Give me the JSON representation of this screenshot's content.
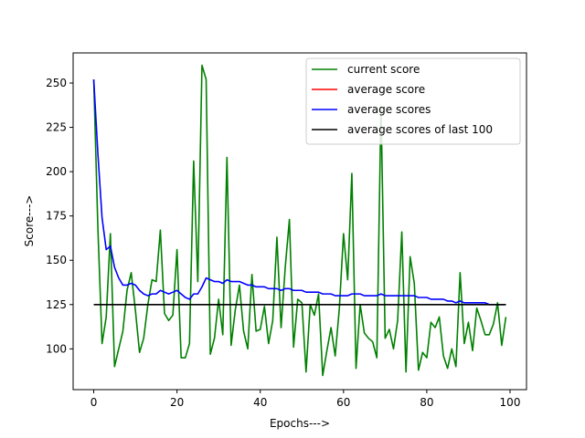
{
  "chart_data": {
    "type": "line",
    "xlabel": "Epochs--->",
    "ylabel": "Score--->",
    "xlim": [
      -4.95,
      103.95
    ],
    "ylim": [
      77,
      267
    ],
    "xticks": [
      0,
      20,
      40,
      60,
      80,
      100
    ],
    "yticks": [
      100,
      125,
      150,
      175,
      200,
      225,
      250
    ],
    "grid": false,
    "legend_position": "top-right",
    "series": [
      {
        "name": "current score",
        "color": "#008000",
        "x": [
          0,
          1,
          2,
          3,
          4,
          5,
          6,
          7,
          8,
          9,
          10,
          11,
          12,
          13,
          14,
          15,
          16,
          17,
          18,
          19,
          20,
          21,
          22,
          23,
          24,
          25,
          26,
          27,
          28,
          29,
          30,
          31,
          32,
          33,
          34,
          35,
          36,
          37,
          38,
          39,
          40,
          41,
          42,
          43,
          44,
          45,
          46,
          47,
          48,
          49,
          50,
          51,
          52,
          53,
          54,
          55,
          56,
          57,
          58,
          59,
          60,
          61,
          62,
          63,
          64,
          65,
          66,
          67,
          68,
          69,
          70,
          71,
          72,
          73,
          74,
          75,
          76,
          77,
          78,
          79,
          80,
          81,
          82,
          83,
          84,
          85,
          86,
          87,
          88,
          89,
          90,
          91,
          92,
          93,
          94,
          95,
          96,
          97,
          98,
          99
        ],
        "y": [
          252,
          168,
          103,
          118,
          165,
          90,
          100,
          110,
          133,
          143,
          122,
          98,
          106,
          125,
          139,
          138,
          167,
          120,
          116,
          119,
          156,
          95,
          95,
          103,
          206,
          138,
          260,
          252,
          97,
          106,
          128,
          108,
          208,
          102,
          122,
          136,
          110,
          100,
          142,
          110,
          111,
          124,
          103,
          116,
          163,
          112,
          146,
          173,
          101,
          128,
          126,
          87,
          125,
          119,
          131,
          85,
          99,
          112,
          96,
          123,
          165,
          139,
          199,
          89,
          125,
          109,
          106,
          104,
          95,
          237,
          106,
          111,
          100,
          116,
          166,
          87,
          152,
          137,
          88,
          98,
          95,
          115,
          112,
          118,
          96,
          89,
          100,
          90,
          143,
          103,
          115,
          99,
          123,
          116,
          108,
          108,
          114,
          126,
          102,
          118
        ]
      },
      {
        "name": "average score",
        "color": "#ff0000",
        "x": [],
        "y": []
      },
      {
        "name": "average scores",
        "color": "#0000ff",
        "x": [
          0,
          1,
          2,
          3,
          4,
          5,
          6,
          7,
          8,
          9,
          10,
          11,
          12,
          13,
          14,
          15,
          16,
          17,
          18,
          19,
          20,
          21,
          22,
          23,
          24,
          25,
          26,
          27,
          28,
          29,
          30,
          31,
          32,
          33,
          34,
          35,
          36,
          37,
          38,
          39,
          40,
          41,
          42,
          43,
          44,
          45,
          46,
          47,
          48,
          49,
          50,
          51,
          52,
          53,
          54,
          55,
          56,
          57,
          58,
          59,
          60,
          61,
          62,
          63,
          64,
          65,
          66,
          67,
          68,
          69,
          70,
          71,
          72,
          73,
          74,
          75,
          76,
          77,
          78,
          79,
          80,
          81,
          82,
          83,
          84,
          85,
          86,
          87,
          88,
          89,
          90,
          91,
          92,
          93,
          94,
          95,
          96,
          97,
          98,
          99
        ],
        "y": [
          252,
          210,
          174,
          156,
          158,
          146,
          140,
          136,
          136,
          137,
          136,
          133,
          131,
          130,
          131,
          131,
          133,
          132,
          131,
          132,
          133,
          131,
          129,
          128,
          131,
          131,
          135,
          140,
          139,
          138,
          138,
          137,
          139,
          138,
          138,
          138,
          137,
          136,
          136,
          135,
          135,
          135,
          134,
          134,
          134,
          133,
          134,
          134,
          133,
          133,
          133,
          132,
          132,
          132,
          132,
          131,
          131,
          131,
          130,
          130,
          130,
          130,
          131,
          131,
          131,
          130,
          130,
          130,
          130,
          131,
          130,
          130,
          130,
          130,
          130,
          130,
          130,
          130,
          129,
          129,
          129,
          128,
          128,
          128,
          128,
          127,
          127,
          126,
          127,
          126,
          126,
          126,
          126,
          126,
          126,
          125,
          125,
          125,
          125,
          125
        ]
      },
      {
        "name": "average scores of last 100",
        "color": "#000000",
        "x": [
          0,
          99
        ],
        "y": [
          125,
          125
        ]
      }
    ]
  }
}
